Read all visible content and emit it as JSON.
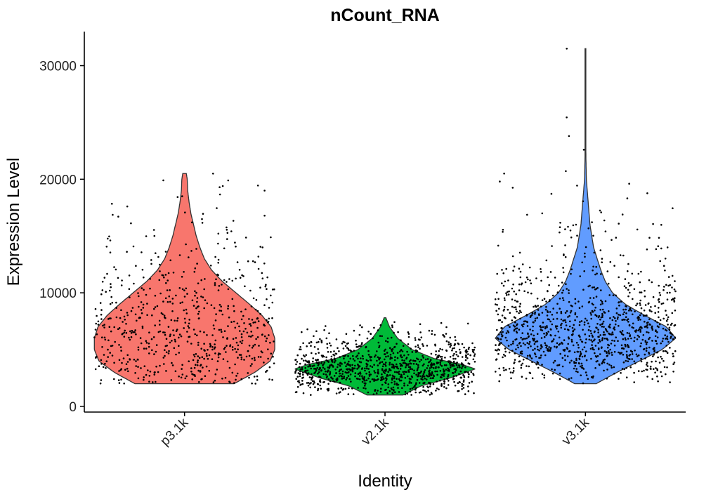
{
  "chart_data": {
    "type": "violin",
    "title": "nCount_RNA",
    "xlabel": "Identity",
    "ylabel": "Expression Level",
    "ylim": [
      -500,
      33000
    ],
    "yticks": [
      0,
      10000,
      20000,
      30000
    ],
    "ytick_labels": [
      "0",
      "10000",
      "20000",
      "30000"
    ],
    "categories": [
      "p3.1k",
      "v2.1k",
      "v3.1k"
    ],
    "colors": [
      "#F8766D",
      "#00BA38",
      "#619CFF"
    ],
    "outline_color": "#333333",
    "point_color": "#000000",
    "grid": false,
    "legend": "none",
    "series": [
      {
        "name": "p3.1k",
        "min": 2000,
        "max": 20500,
        "n_points": 650,
        "density": [
          [
            2000,
            0.55
          ],
          [
            3000,
            0.78
          ],
          [
            4000,
            0.95
          ],
          [
            5000,
            1.0
          ],
          [
            6000,
            1.0
          ],
          [
            7000,
            0.96
          ],
          [
            8000,
            0.86
          ],
          [
            9000,
            0.72
          ],
          [
            10000,
            0.57
          ],
          [
            11000,
            0.42
          ],
          [
            12000,
            0.3
          ],
          [
            13000,
            0.22
          ],
          [
            14000,
            0.17
          ],
          [
            15000,
            0.13
          ],
          [
            16000,
            0.1
          ],
          [
            17000,
            0.07
          ],
          [
            18000,
            0.05
          ],
          [
            19000,
            0.035
          ],
          [
            20000,
            0.03
          ],
          [
            20500,
            0.02
          ]
        ],
        "outliers": [
          19900,
          19400,
          19300,
          19000,
          18500
        ]
      },
      {
        "name": "v2.1k",
        "min": 1000,
        "max": 7800,
        "n_points": 1000,
        "density": [
          [
            1000,
            0.2
          ],
          [
            1800,
            0.4
          ],
          [
            2500,
            0.72
          ],
          [
            3000,
            0.9
          ],
          [
            3300,
            1.0
          ],
          [
            3700,
            0.85
          ],
          [
            4200,
            0.55
          ],
          [
            5000,
            0.3
          ],
          [
            6000,
            0.14
          ],
          [
            7000,
            0.05
          ],
          [
            7800,
            0.01
          ]
        ],
        "outliers": []
      },
      {
        "name": "v3.1k",
        "min": 2000,
        "max": 31500,
        "n_points": 1100,
        "density": [
          [
            2000,
            0.12
          ],
          [
            3000,
            0.35
          ],
          [
            4000,
            0.6
          ],
          [
            5000,
            0.85
          ],
          [
            6000,
            1.0
          ],
          [
            7000,
            0.9
          ],
          [
            8000,
            0.66
          ],
          [
            9000,
            0.44
          ],
          [
            10000,
            0.3
          ],
          [
            11000,
            0.22
          ],
          [
            12000,
            0.17
          ],
          [
            13000,
            0.13
          ],
          [
            14000,
            0.09
          ],
          [
            15000,
            0.07
          ],
          [
            16000,
            0.05
          ],
          [
            17000,
            0.04
          ],
          [
            18000,
            0.03
          ],
          [
            19000,
            0.02
          ],
          [
            20000,
            0.01
          ],
          [
            22000,
            0.005
          ],
          [
            25000,
            0.003
          ],
          [
            31500,
            0.001
          ]
        ],
        "outliers": [
          31500,
          23800,
          22600,
          20500,
          19800
        ]
      }
    ]
  }
}
